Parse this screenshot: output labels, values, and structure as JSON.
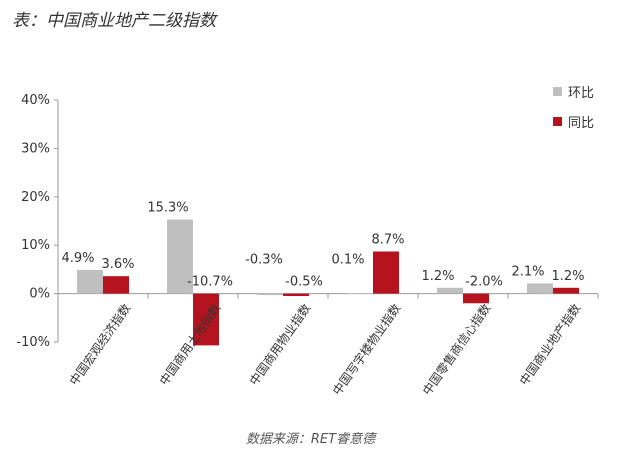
{
  "title": "表：中国商业地产二级指数",
  "source": "数据来源：RET睿意德",
  "chart_data": {
    "type": "bar",
    "title": "",
    "xlabel": "",
    "ylabel": "",
    "ylim": [
      -10,
      40
    ],
    "yticks": [
      -10,
      0,
      10,
      20,
      30,
      40
    ],
    "ytick_labels": [
      "-10%",
      "0%",
      "10%",
      "20%",
      "30%",
      "40%"
    ],
    "grid": false,
    "legend_position": "top-right",
    "categories": [
      "中国宏观经济指数",
      "中国商用土地指数",
      "中国商用物业指数",
      "中国写字楼物业指数",
      "中国零售商信心指数",
      "中国商业地产指数"
    ],
    "series": [
      {
        "name": "环比",
        "color": "#bfbfbf",
        "values": [
          4.9,
          15.3,
          -0.3,
          0.1,
          1.2,
          2.1
        ],
        "labels": [
          "4.9%",
          "15.3%",
          "-0.3%",
          "0.1%",
          "1.2%",
          "2.1%"
        ]
      },
      {
        "name": "同比",
        "color": "#b5141f",
        "values": [
          3.6,
          -10.7,
          -0.5,
          8.7,
          -2.0,
          1.2
        ],
        "labels": [
          "3.6%",
          "-10.7%",
          "-0.5%",
          "8.7%",
          "-2.0%",
          "1.2%"
        ]
      }
    ]
  }
}
